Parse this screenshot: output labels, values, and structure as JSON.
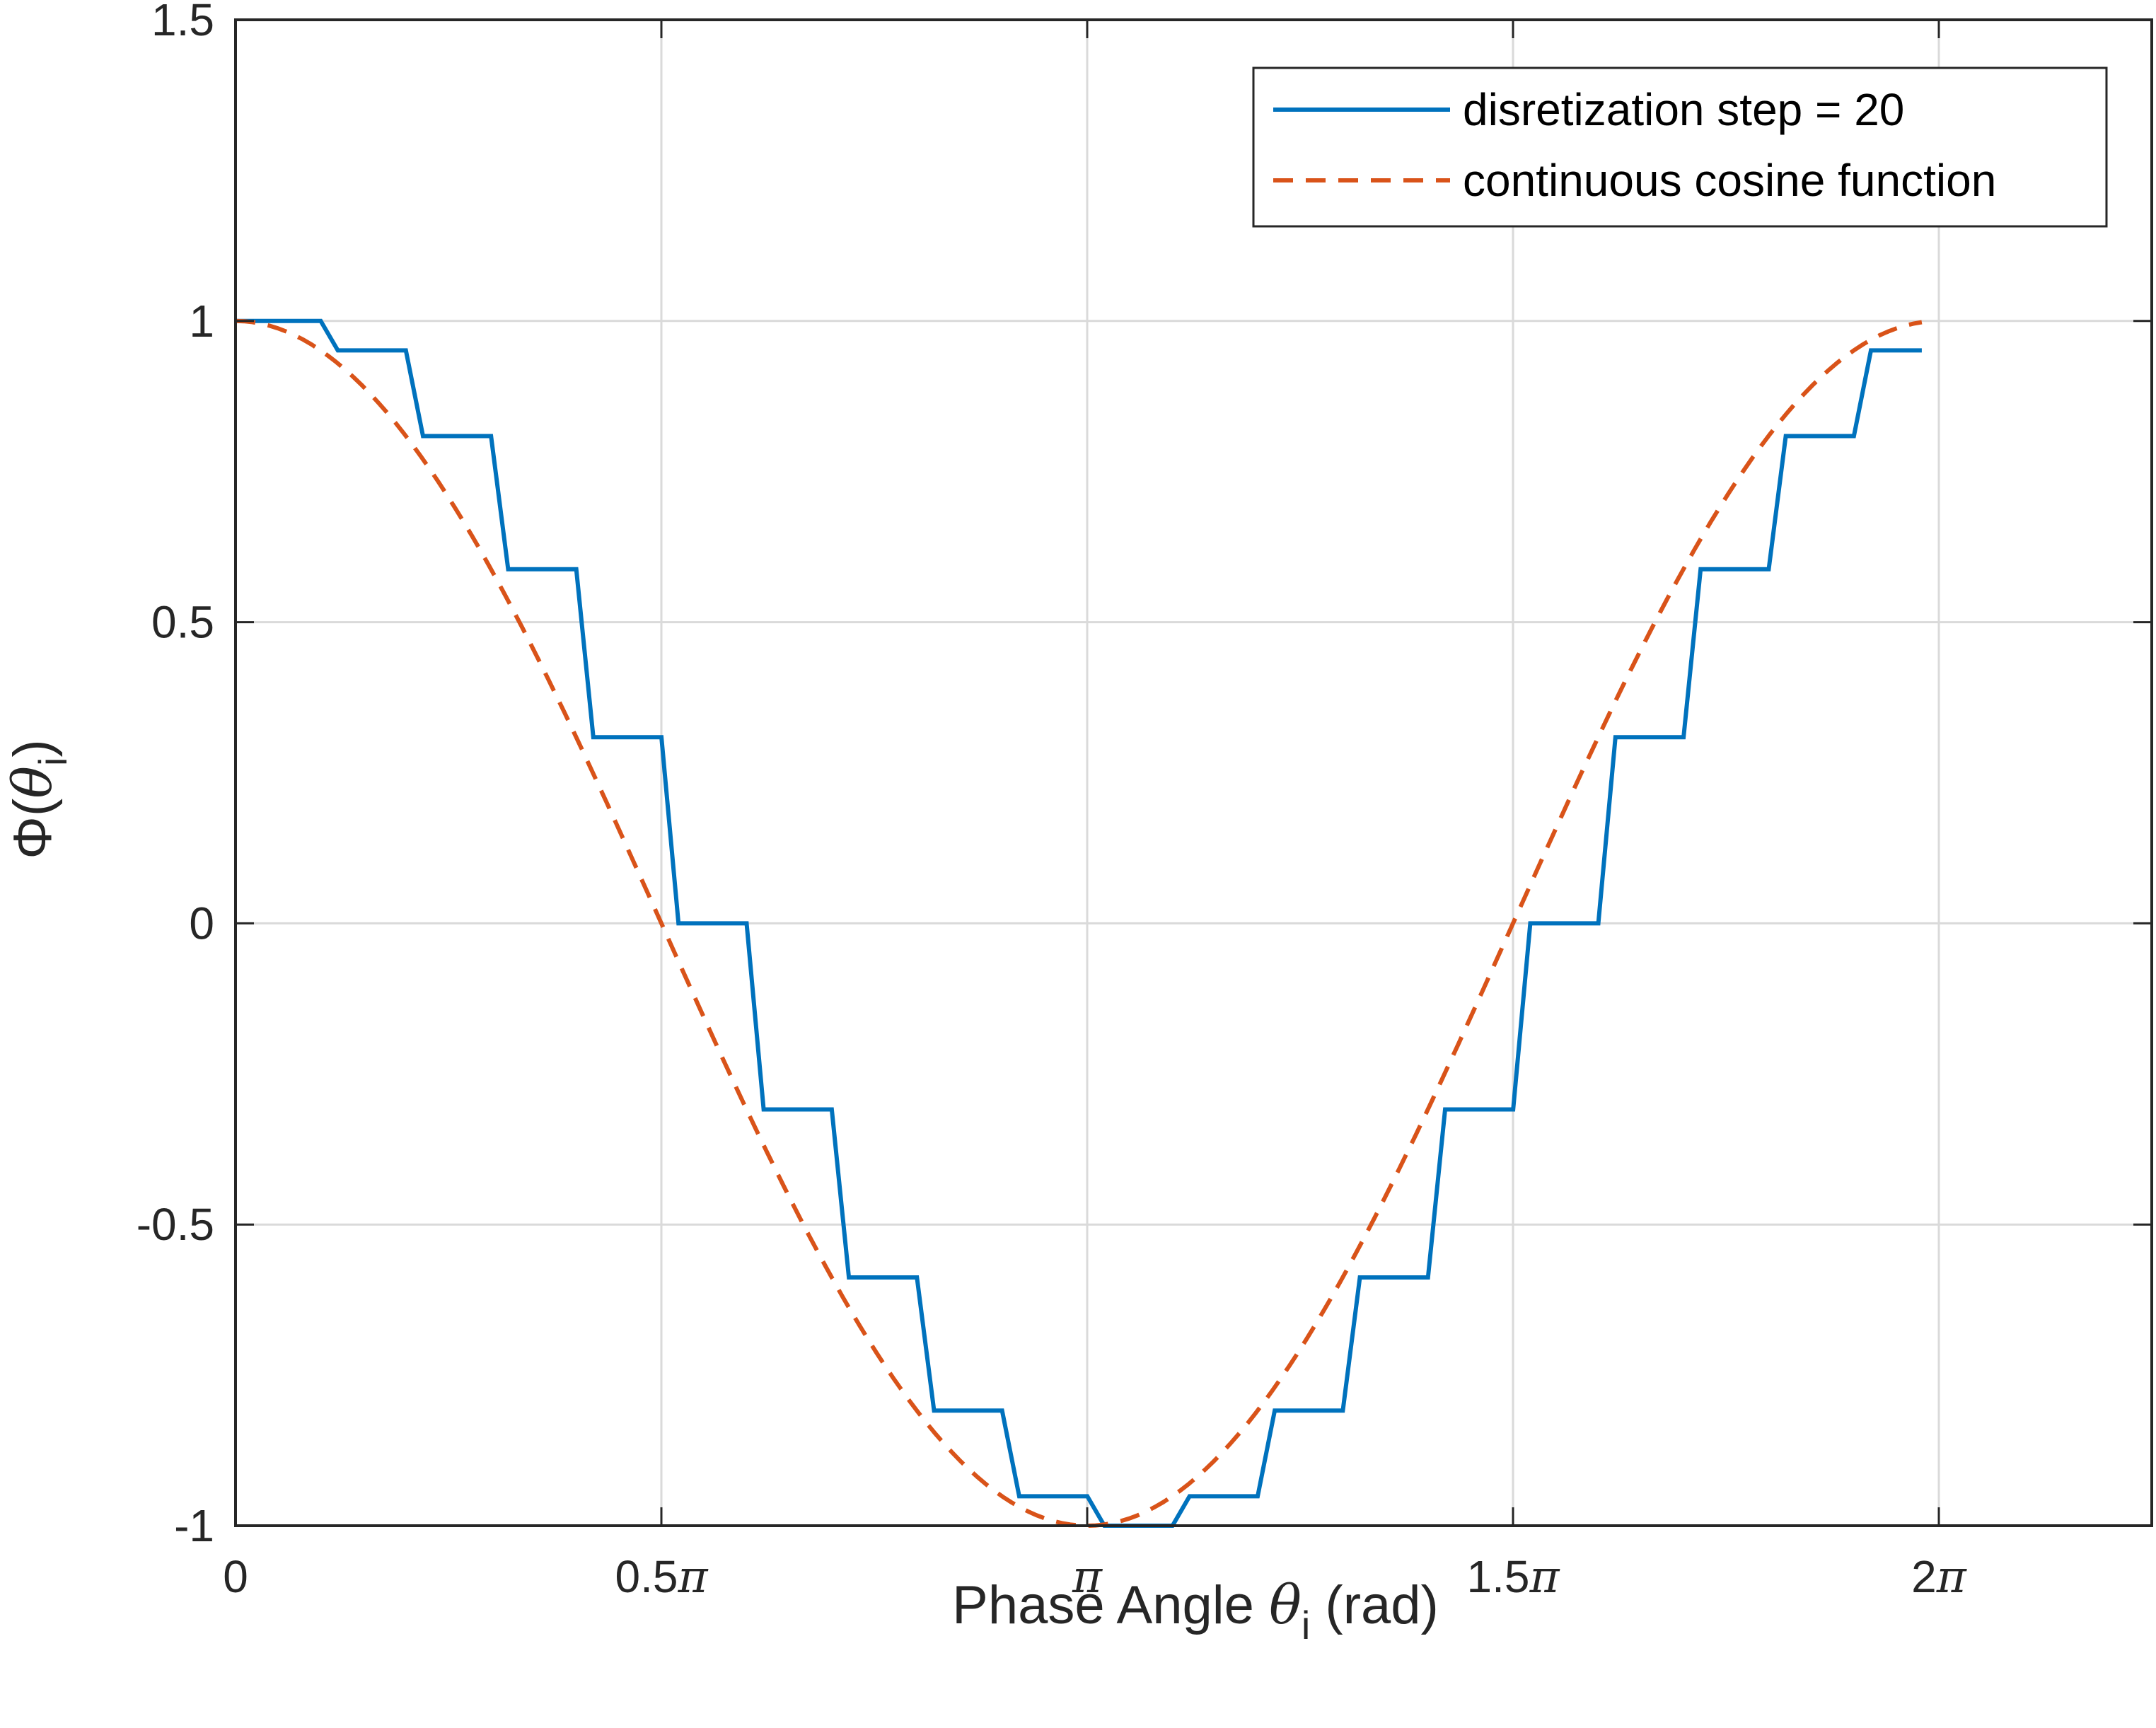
{
  "chart_data": {
    "type": "line",
    "title": "",
    "xlabel": {
      "prefix": "Phase Angle ",
      "symbol": "θ",
      "subscript": "i",
      "suffix": " (rad)"
    },
    "ylabel": {
      "prefix": "Φ(",
      "symbol": "θ",
      "subscript": "i",
      "suffix": ")"
    },
    "xlim": [
      0,
      7.0686
    ],
    "ylim": [
      -1,
      1.5
    ],
    "grid": true,
    "legend_location": "top-right",
    "x_ticks": [
      {
        "value": 0,
        "num": "0",
        "pi": ""
      },
      {
        "value": 1.5708,
        "num": "0.5",
        "pi": "π"
      },
      {
        "value": 3.1416,
        "num": "",
        "pi": "π"
      },
      {
        "value": 4.7124,
        "num": "1.5",
        "pi": "π"
      },
      {
        "value": 6.2832,
        "num": "2",
        "pi": "π"
      }
    ],
    "y_ticks": [
      {
        "value": -1,
        "label": "-1"
      },
      {
        "value": -0.5,
        "label": "-0.5"
      },
      {
        "value": 0,
        "label": "0"
      },
      {
        "value": 0.5,
        "label": "0.5"
      },
      {
        "value": 1,
        "label": "1"
      },
      {
        "value": 1.5,
        "label": "1.5"
      }
    ],
    "series": [
      {
        "name": "disretization step = 20",
        "style": "staircase",
        "color": "#0072BD",
        "step_width": 0.3142,
        "x_start": 0,
        "x_end": 6.2204,
        "transition": 0.063,
        "levels": [
          1.0,
          0.9511,
          0.809,
          0.5878,
          0.309,
          0.0,
          -0.309,
          -0.5878,
          -0.809,
          -0.9511,
          -1.0,
          -0.9511,
          -0.809,
          -0.5878,
          -0.309,
          0.0,
          0.309,
          0.5878,
          0.809,
          0.9511
        ]
      },
      {
        "name": "continuous cosine function",
        "style": "dashed",
        "color": "#D95319",
        "function": "cos",
        "x_start": 0,
        "x_end": 6.2204,
        "samples": 200
      }
    ]
  }
}
